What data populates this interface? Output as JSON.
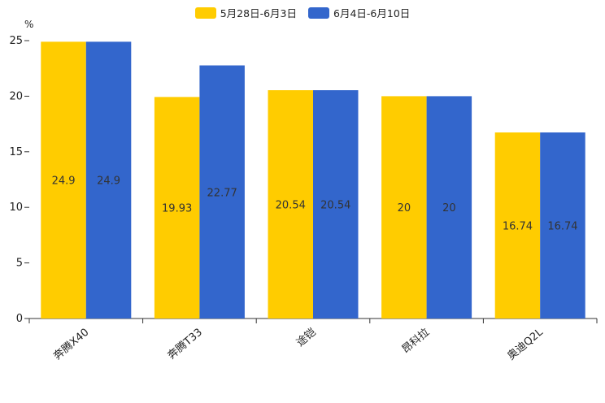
{
  "chart_data": {
    "type": "bar",
    "unit_label": "%",
    "categories": [
      "奔腾X40",
      "奔腾T33",
      "途铠",
      "昂科拉",
      "奥迪Q2L"
    ],
    "series": [
      {
        "name": "5月28日-6月3日",
        "color": "#ffcc00",
        "values": [
          24.9,
          19.93,
          20.54,
          20,
          16.74
        ]
      },
      {
        "name": "6月4日-6月10日",
        "color": "#3366cc",
        "values": [
          24.9,
          22.77,
          20.54,
          20,
          16.74
        ]
      }
    ],
    "ylim": [
      0,
      25
    ],
    "yticks": [
      0,
      5,
      10,
      15,
      20,
      25
    ],
    "legend_position": "top-center",
    "grid": false
  }
}
